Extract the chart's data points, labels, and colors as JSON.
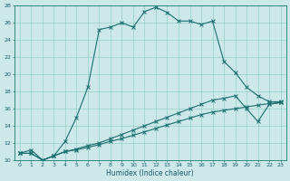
{
  "xlabel": "Humidex (Indice chaleur)",
  "bg_color": "#cce8e8",
  "line_color": "#1a6e6e",
  "xlim": [
    -0.5,
    23.5
  ],
  "ylim": [
    10,
    28
  ],
  "yticks": [
    10,
    12,
    14,
    16,
    18,
    20,
    22,
    24,
    26,
    28
  ],
  "xticks": [
    0,
    1,
    2,
    3,
    4,
    5,
    6,
    7,
    8,
    9,
    10,
    11,
    12,
    13,
    14,
    15,
    16,
    17,
    18,
    19,
    20,
    21,
    22,
    23
  ],
  "line1_x": [
    0,
    1,
    2,
    3,
    4,
    5,
    6,
    7,
    8,
    9,
    10,
    11,
    12,
    13,
    14,
    15,
    16,
    17,
    18,
    19,
    20,
    21,
    22,
    23
  ],
  "line1_y": [
    10.8,
    11.2,
    10.0,
    10.5,
    12.2,
    15.0,
    18.5,
    25.2,
    25.5,
    26.0,
    25.5,
    27.3,
    27.8,
    27.2,
    26.2,
    26.2,
    25.8,
    26.2,
    21.5,
    20.2,
    18.5,
    17.5,
    16.8,
    16.8
  ],
  "line2_x": [
    0,
    1,
    2,
    3,
    4,
    5,
    6,
    7,
    8,
    9,
    10,
    11,
    12,
    13,
    14,
    15,
    16,
    17,
    18,
    19,
    20,
    21,
    22,
    23
  ],
  "line2_y": [
    10.8,
    10.8,
    10.0,
    10.5,
    11.0,
    11.3,
    11.7,
    12.0,
    12.5,
    13.0,
    13.5,
    14.0,
    14.5,
    15.0,
    15.5,
    16.0,
    16.5,
    17.0,
    17.2,
    17.5,
    16.0,
    14.5,
    16.5,
    16.7
  ],
  "line3_x": [
    0,
    1,
    2,
    3,
    4,
    5,
    6,
    7,
    8,
    9,
    10,
    11,
    12,
    13,
    14,
    15,
    16,
    17,
    18,
    19,
    20,
    21,
    22,
    23
  ],
  "line3_y": [
    10.8,
    10.8,
    10.0,
    10.5,
    11.0,
    11.2,
    11.5,
    11.8,
    12.2,
    12.5,
    12.9,
    13.3,
    13.7,
    14.1,
    14.5,
    14.9,
    15.3,
    15.6,
    15.8,
    16.0,
    16.2,
    16.4,
    16.6,
    16.7
  ]
}
